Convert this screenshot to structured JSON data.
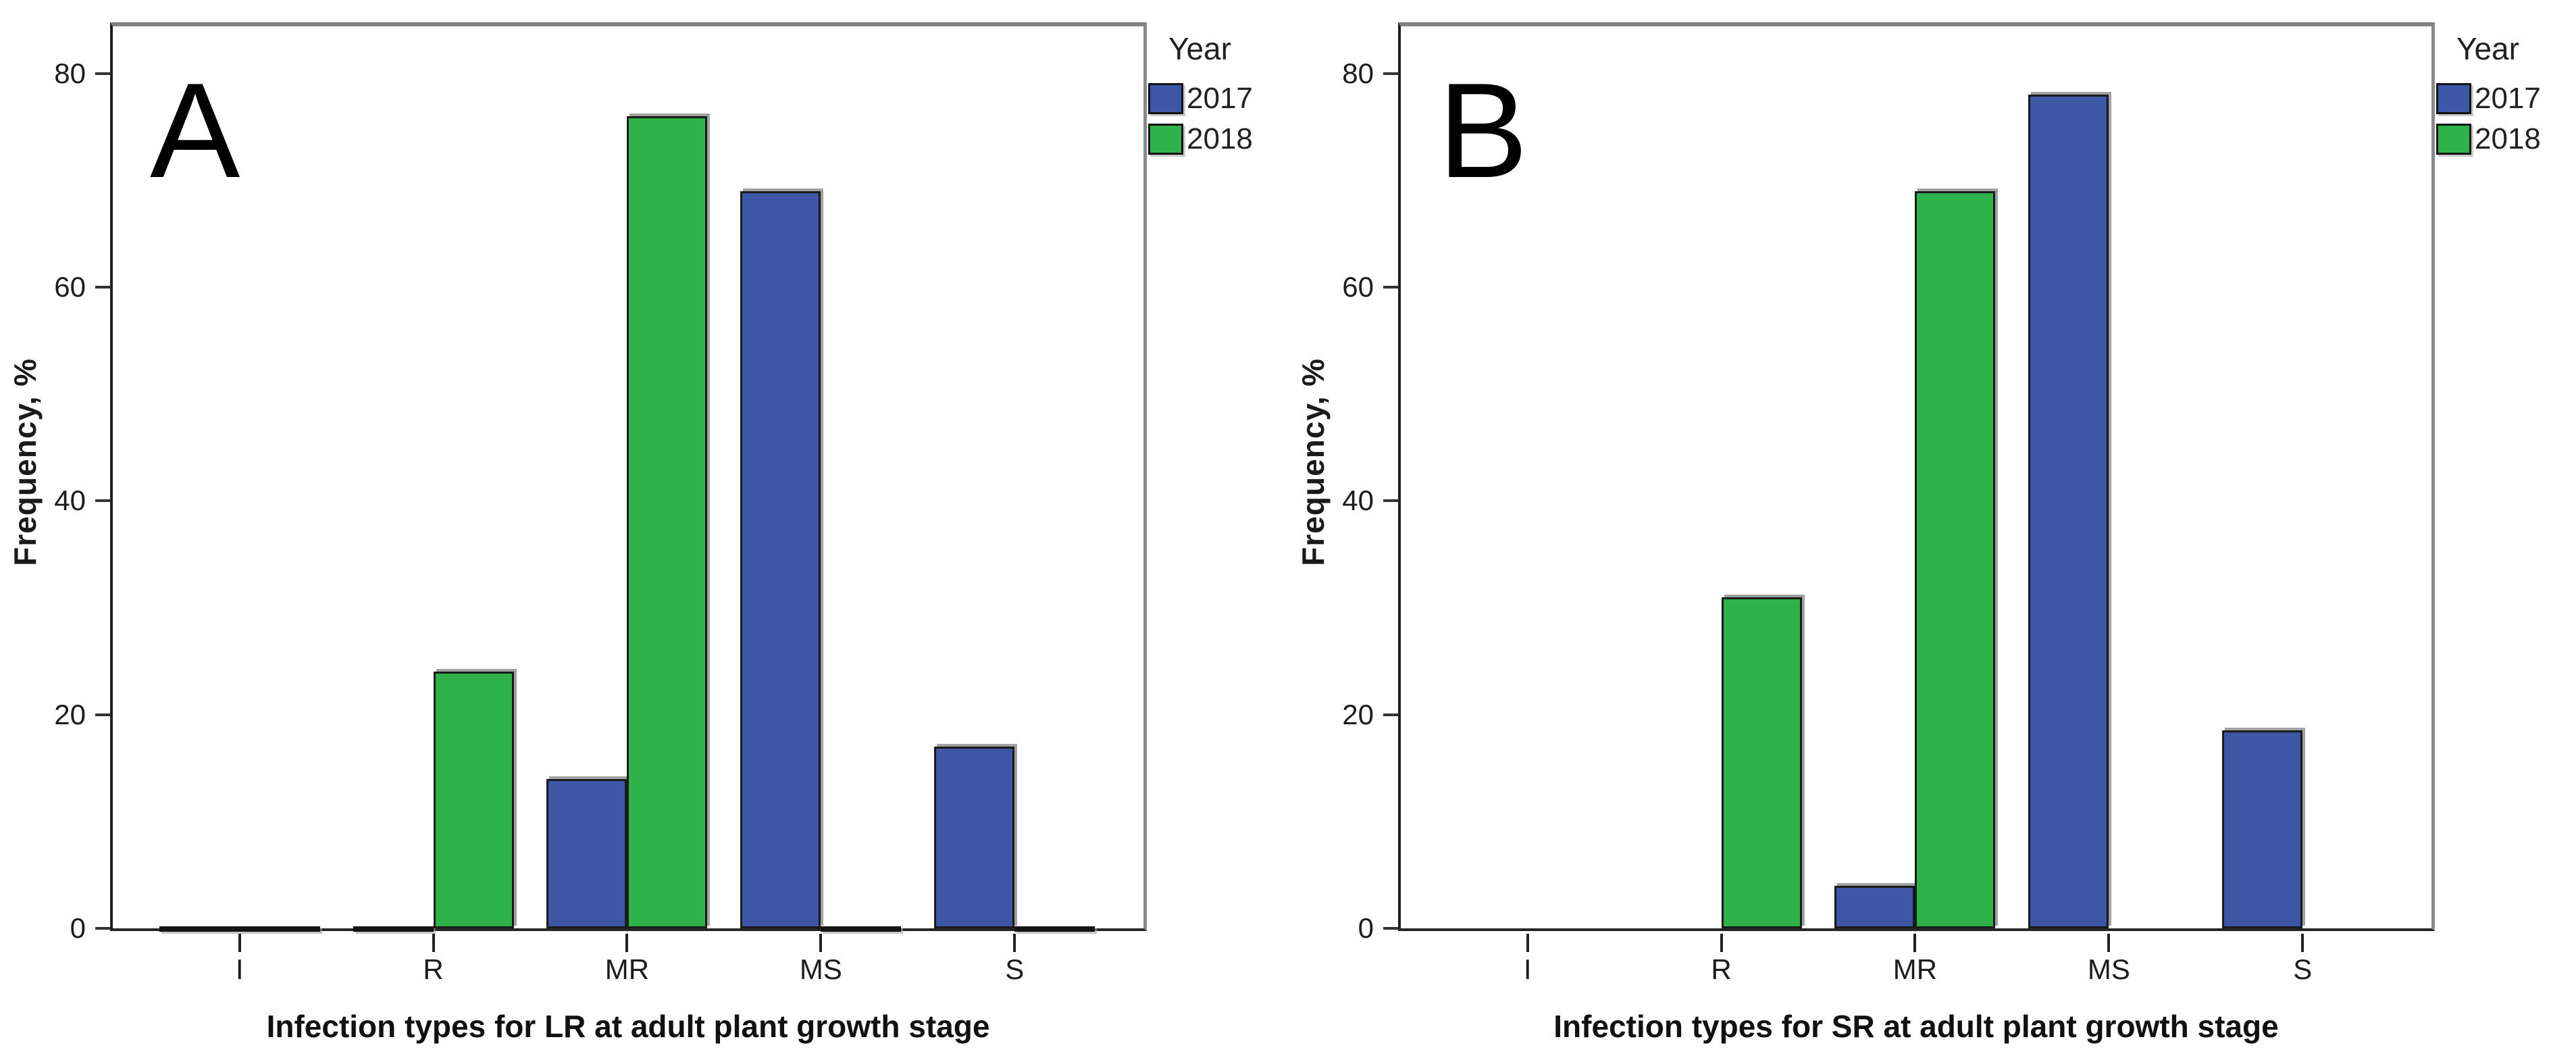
{
  "chart_data": [
    {
      "type": "bar",
      "panel_label": "A",
      "categories": [
        "I",
        "R",
        "MR",
        "MS",
        "S"
      ],
      "series": [
        {
          "name": "2017",
          "color": "#3E56A6",
          "values": [
            0,
            0,
            14,
            69,
            17
          ]
        },
        {
          "name": "2018",
          "color": "#2DB34A",
          "values": [
            0,
            24,
            76,
            0,
            0
          ]
        }
      ],
      "xlabel": "Infection types for LR at adult plant growth stage",
      "ylabel": "Frequency, %",
      "yticks": [
        0,
        20,
        40,
        60,
        80
      ],
      "ylim": [
        0,
        84.4
      ],
      "grid": false,
      "legend": {
        "title": "Year",
        "position": "right"
      },
      "zero_bar_slivers": true
    },
    {
      "type": "bar",
      "panel_label": "B",
      "categories": [
        "I",
        "R",
        "MR",
        "MS",
        "S"
      ],
      "series": [
        {
          "name": "2017",
          "color": "#3E56A6",
          "values": [
            0,
            0,
            4,
            78,
            18.5
          ]
        },
        {
          "name": "2018",
          "color": "#2DB34A",
          "values": [
            0,
            31,
            69,
            0,
            0
          ]
        }
      ],
      "xlabel": "Infection types for SR at adult plant growth stage",
      "ylabel": "Frequency, %",
      "yticks": [
        0,
        20,
        40,
        60,
        80
      ],
      "ylim": [
        0,
        84.4
      ],
      "grid": false,
      "legend": {
        "title": "Year",
        "position": "right"
      },
      "zero_bar_slivers": false
    }
  ]
}
